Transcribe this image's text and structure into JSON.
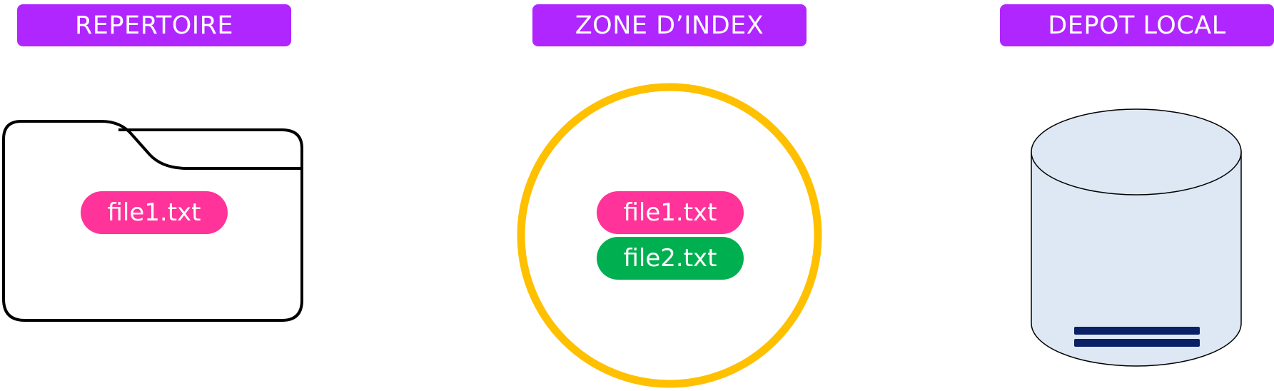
{
  "colors": {
    "header": "#b026ff",
    "file1": "#ff3399",
    "file2": "#00b050",
    "index_ring": "#ffc000",
    "cylinder_fill": "#dde8f4",
    "cylinder_bars": "#0b2166"
  },
  "sections": {
    "working_directory": {
      "title": "REPERTOIRE",
      "icon": "folder-icon",
      "files": [
        "file1.txt"
      ]
    },
    "staging_area": {
      "title": "ZONE D’INDEX",
      "icon": "circle",
      "files": [
        "file1.txt",
        "file2.txt"
      ]
    },
    "local_repository": {
      "title": "DEPOT LOCAL",
      "icon": "database-icon"
    }
  }
}
